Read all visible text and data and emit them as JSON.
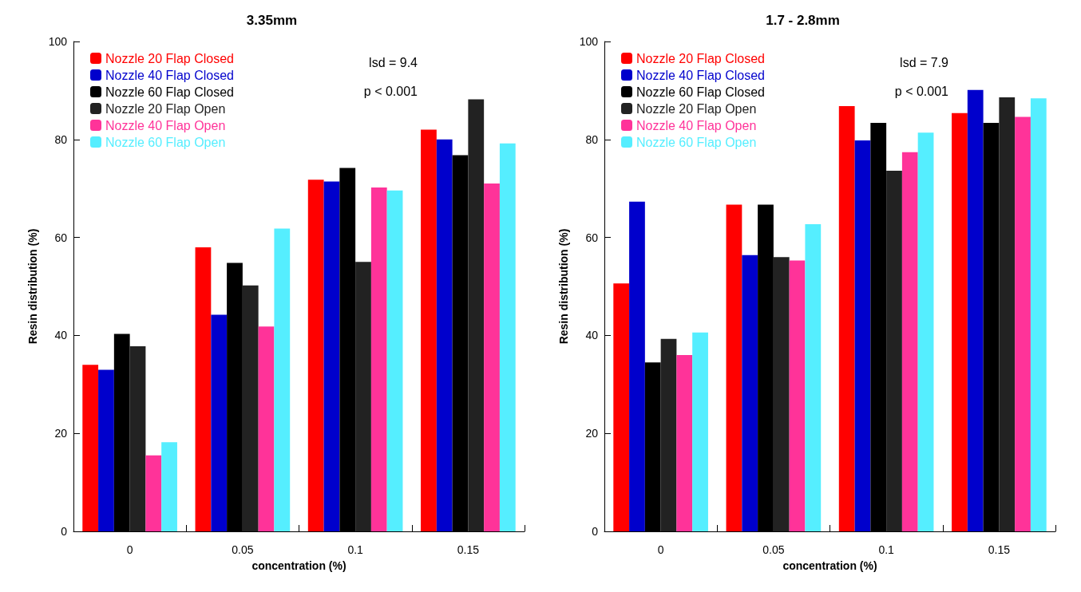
{
  "chart_data": [
    {
      "type": "bar",
      "title": "3.35mm",
      "xlabel": "concentration (%)",
      "ylabel": "Resin distribution (%)",
      "categories": [
        "0",
        "0.05",
        "0.1",
        "0.15"
      ],
      "ylim": [
        0,
        100
      ],
      "yticks": [
        0,
        20,
        40,
        60,
        80,
        100
      ],
      "grid": false,
      "legend": "top left",
      "annotations": [
        "lsd = 9.4",
        "p < 0.001"
      ],
      "series": [
        {
          "name": "Nozzle 20 Flap Closed",
          "color": "#ff0000",
          "values": [
            34,
            58,
            71.8,
            82
          ]
        },
        {
          "name": "Nozzle 40 Flap Closed",
          "color": "#0000cc",
          "values": [
            33,
            44.2,
            71.4,
            80
          ]
        },
        {
          "name": "Nozzle 60 Flap Closed",
          "color": "#000000",
          "values": [
            40.3,
            54.8,
            74.2,
            76.8
          ]
        },
        {
          "name": "Nozzle 20 Flap Open",
          "color": "#222222",
          "values": [
            37.8,
            50.2,
            55,
            88.2
          ]
        },
        {
          "name": "Nozzle 40 Flap Open",
          "color": "#ff3399",
          "values": [
            15.5,
            41.8,
            70.2,
            71
          ]
        },
        {
          "name": "Nozzle 60 Flap Open",
          "color": "#55eeff",
          "values": [
            18.2,
            61.8,
            69.6,
            79.2
          ]
        }
      ]
    },
    {
      "type": "bar",
      "title": "1.7 - 2.8mm",
      "xlabel": "concentration (%)",
      "ylabel": "Resin distribution (%)",
      "categories": [
        "0",
        "0.05",
        "0.1",
        "0.15"
      ],
      "ylim": [
        0,
        100
      ],
      "yticks": [
        0,
        20,
        40,
        60,
        80,
        100
      ],
      "grid": false,
      "legend": "top left",
      "annotations": [
        "lsd = 7.9",
        "p < 0.001"
      ],
      "series": [
        {
          "name": "Nozzle 20 Flap Closed",
          "color": "#ff0000",
          "values": [
            50.6,
            66.7,
            86.8,
            85.4
          ]
        },
        {
          "name": "Nozzle 40 Flap Closed",
          "color": "#0000cc",
          "values": [
            67.3,
            56.4,
            79.8,
            90.1
          ]
        },
        {
          "name": "Nozzle 60 Flap Closed",
          "color": "#000000",
          "values": [
            34.5,
            66.7,
            83.4,
            83.4
          ]
        },
        {
          "name": "Nozzle 20 Flap Open",
          "color": "#222222",
          "values": [
            39.3,
            56,
            73.6,
            88.6
          ]
        },
        {
          "name": "Nozzle 40 Flap Open",
          "color": "#ff3399",
          "values": [
            36,
            55.3,
            77.4,
            84.6
          ]
        },
        {
          "name": "Nozzle 60 Flap Open",
          "color": "#55eeff",
          "values": [
            40.6,
            62.7,
            81.4,
            88.4
          ]
        }
      ]
    }
  ]
}
